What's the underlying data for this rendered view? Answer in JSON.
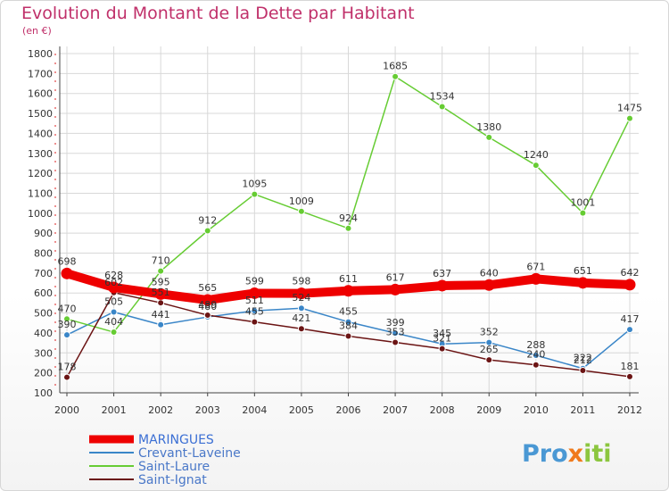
{
  "chart_data": {
    "type": "line",
    "title": "Evolution du Montant de la Dette par Habitant",
    "subtitle": "(en €)",
    "xlabel": "",
    "ylabel": "",
    "ylim": [
      100,
      1800
    ],
    "yticks": [
      100,
      200,
      300,
      400,
      500,
      600,
      700,
      800,
      900,
      1000,
      1100,
      1200,
      1300,
      1400,
      1500,
      1600,
      1700,
      1800
    ],
    "x": [
      "2000",
      "2001",
      "2002",
      "2003",
      "2004",
      "2005",
      "2006",
      "2007",
      "2008",
      "2009",
      "2010",
      "2011",
      "2012"
    ],
    "grid": true,
    "legend_position": "bottom-left",
    "series": [
      {
        "name": "MARINGUES",
        "color": "#ee0000",
        "thick": true,
        "values": [
          698,
          628,
          595,
          565,
          599,
          598,
          611,
          617,
          637,
          640,
          671,
          651,
          642
        ],
        "labels": [
          "698",
          "628",
          "595",
          "565",
          "599",
          "598",
          "611",
          "617",
          "637",
          "640",
          "671",
          "651",
          "642"
        ]
      },
      {
        "name": "Crevant-Laveine",
        "color": "#3a86c8",
        "thick": false,
        "values": [
          390,
          505,
          441,
          480,
          511,
          524,
          455,
          399,
          345,
          352,
          288,
          222,
          417
        ],
        "labels": [
          "390",
          "505",
          "441",
          "480",
          "511",
          "524",
          "455",
          "399",
          "345",
          "352",
          "288",
          "222",
          "417"
        ]
      },
      {
        "name": "Saint-Laure",
        "color": "#66cc33",
        "thick": false,
        "values": [
          470,
          404,
          710,
          912,
          1095,
          1009,
          924,
          1685,
          1534,
          1380,
          1240,
          1001,
          1475
        ],
        "labels": [
          "470",
          "404",
          "710",
          "912",
          "1095",
          "1009",
          "924",
          "1685",
          "1534",
          "1380",
          "1240",
          "1001",
          "1475"
        ]
      },
      {
        "name": "Saint-Ignat",
        "color": "#6b1414",
        "thick": false,
        "values": [
          178,
          602,
          551,
          489,
          455,
          421,
          384,
          353,
          321,
          265,
          240,
          212,
          181
        ],
        "labels": [
          "178",
          "602",
          "551",
          "489",
          "455",
          "421",
          "384",
          "353",
          "321",
          "265",
          "240",
          "212",
          "181"
        ]
      }
    ]
  },
  "logo": {
    "parts": [
      "Pro",
      "x",
      "iti"
    ],
    "colors": [
      "#4a98d4",
      "#f07a1c",
      "#8cc63f"
    ]
  }
}
